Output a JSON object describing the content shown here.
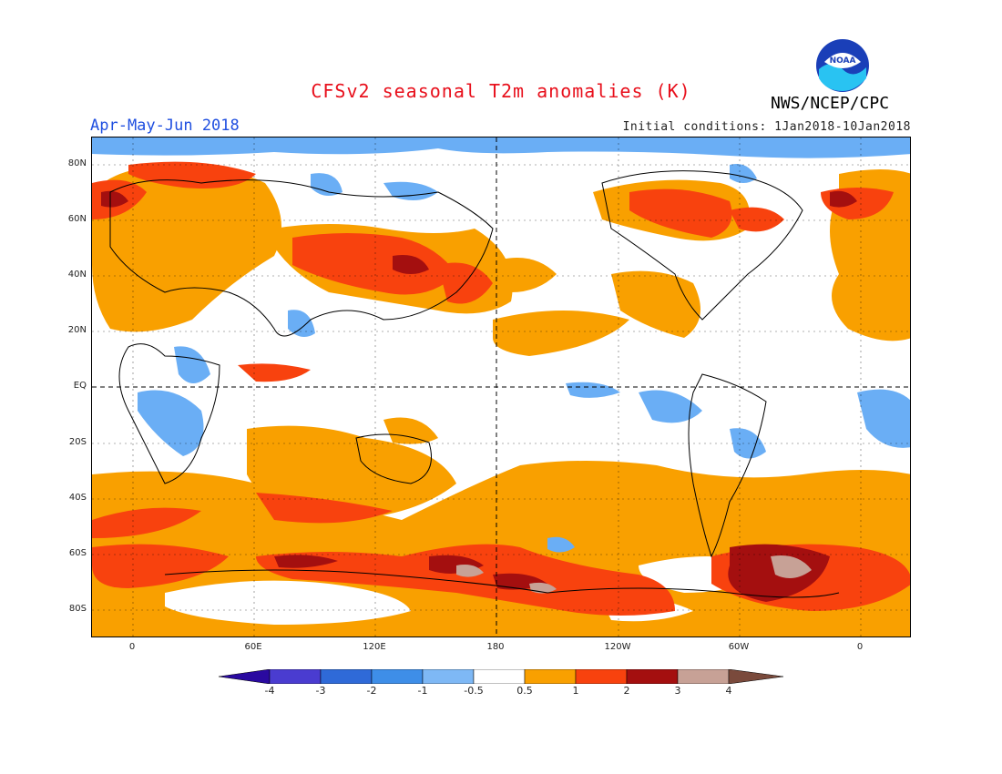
{
  "header": {
    "title": "CFSv2 seasonal T2m anomalies (K)",
    "season": "Apr-May-Jun 2018",
    "initial_conditions": "Initial conditions: 1Jan2018-10Jan2018",
    "agency": "NWS/NCEP/CPC",
    "logo_text": "NOAA"
  },
  "map": {
    "latitude_labels": [
      "80N",
      "60N",
      "40N",
      "20N",
      "EQ",
      "20S",
      "40S",
      "60S",
      "80S"
    ],
    "longitude_labels": [
      "0",
      "60E",
      "120E",
      "180",
      "120W",
      "60W",
      "0"
    ],
    "colors": {
      "ocean_white": "#ffffff",
      "warm_0_5_1": "#f9a000",
      "warm_1_2": "#f8420e",
      "warm_2_3": "#a40f0f",
      "warm_3_4": "#c7a196",
      "cool_m1_m0_5": "#6aaef5",
      "cool_m2_m1": "#3b86e8",
      "coast": "#000000"
    }
  },
  "colorbar": {
    "labels": [
      "-4",
      "-3",
      "-2",
      "-1",
      "-0.5",
      "0.5",
      "1",
      "2",
      "3",
      "4"
    ],
    "colors": [
      "#2a0aa0",
      "#4a3cd0",
      "#2f6ad8",
      "#3e8ee8",
      "#7eb8f5",
      "#ffffff",
      "#f9a000",
      "#f8420e",
      "#a40f0f",
      "#c7a196",
      "#7a4a3c"
    ]
  }
}
